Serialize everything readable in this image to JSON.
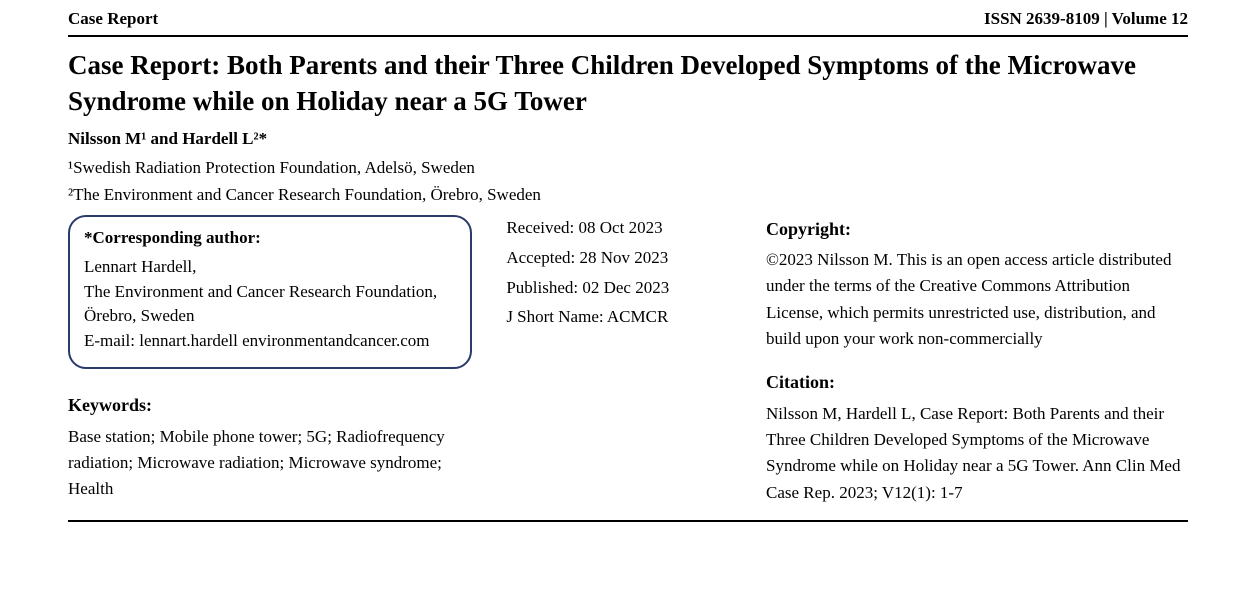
{
  "header": {
    "left": "Case Report",
    "right": "ISSN 2639-8109 | Volume 12"
  },
  "title": "Case Report: Both Parents and their Three Children Developed Symptoms of the Microwave Syndrome while on Holiday near a 5G Tower",
  "authors_html": "Nilsson M¹ and Hardell L²*",
  "affiliations": [
    "¹Swedish Radiation Protection Foundation, Adelsö, Sweden",
    "²The Environment and Cancer Research Foundation, Örebro, Sweden"
  ],
  "corresponding": {
    "heading": "*Corresponding author:",
    "lines": [
      "Lennart Hardell,",
      "The Environment and Cancer Research Foundation,",
      "Örebro, Sweden",
      "E-mail: lennart.hardell environmentandcancer.com"
    ]
  },
  "keywords": {
    "heading": "Keywords:",
    "text": "Base station; Mobile phone tower; 5G; Radiofrequency radiation; Microwave radiation; Microwave syndrome; Health"
  },
  "dates": {
    "received": "Received: 08 Oct 2023",
    "accepted": "Accepted: 28 Nov 2023",
    "published": "Published: 02 Dec 2023",
    "shortname": "J Short Name: ACMCR"
  },
  "copyright": {
    "heading": "Copyright:",
    "text": "©2023 Nilsson M. This is an open access article distributed under the terms of the Creative Commons Attribution License, which permits unrestricted use, distribution, and build upon your work non-commercially"
  },
  "citation": {
    "heading": "Citation:",
    "text": "Nilsson M, Hardell L, Case Report: Both Parents and their Three Children Developed Symptoms of the Microwave Syndrome while on Holiday near a 5G Tower. Ann Clin Med Case Rep. 2023; V12(1): 1-7"
  },
  "colors": {
    "text": "#000000",
    "background": "#ffffff",
    "rule": "#000000",
    "box_border": "#2a3a6a"
  },
  "typography": {
    "body_font": "Georgia / Times New Roman serif",
    "title_size_pt": 20,
    "heading_size_pt": 13,
    "body_size_pt": 12
  }
}
